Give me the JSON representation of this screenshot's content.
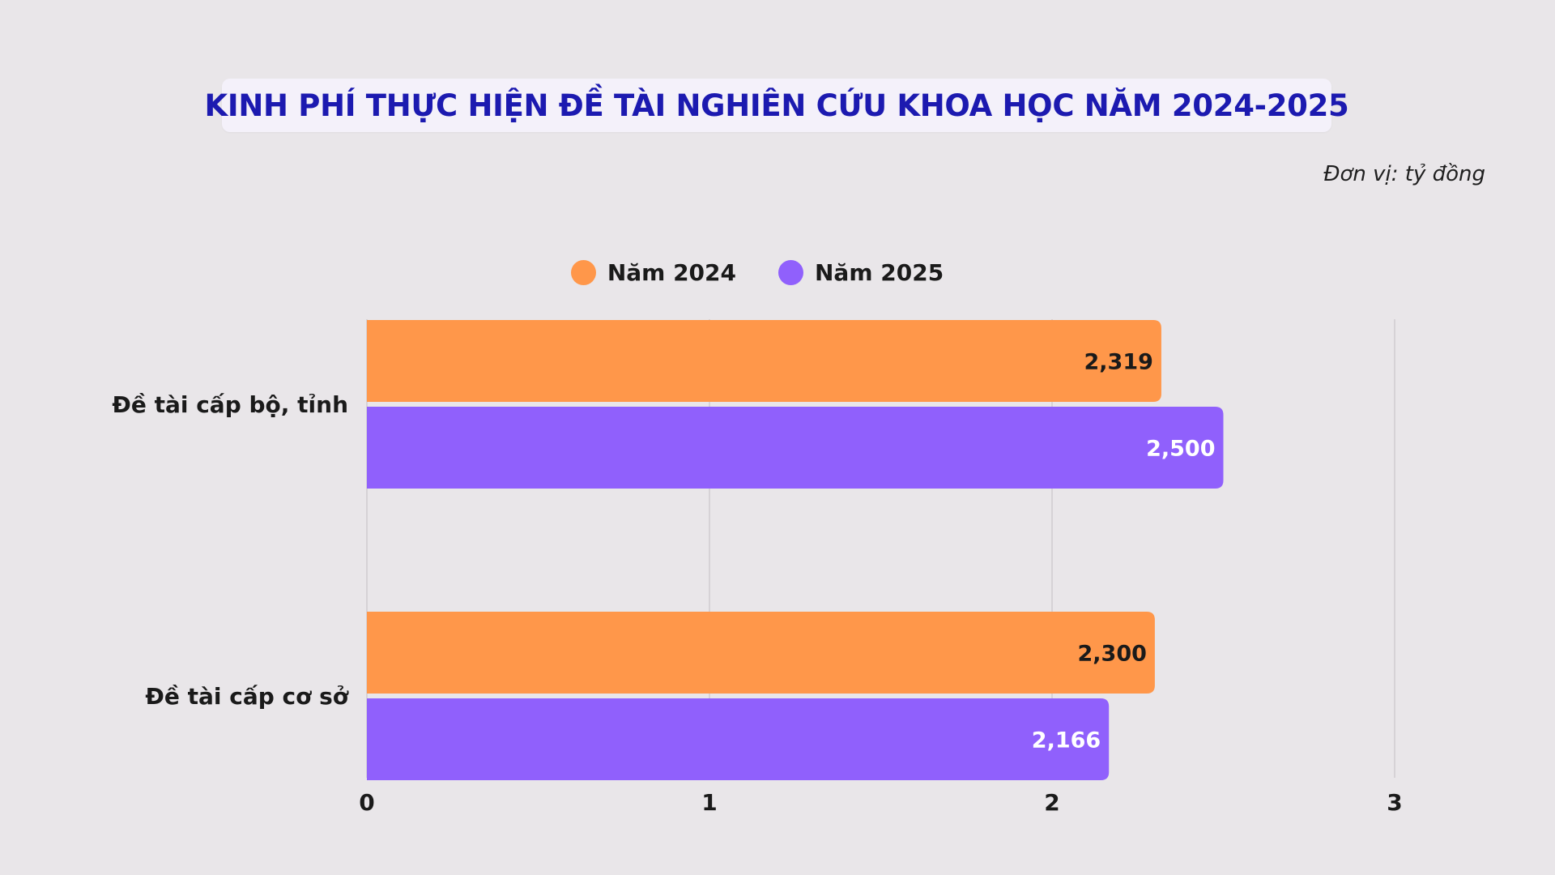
{
  "title": "KINH PHÍ THỰC HIỆN ĐỀ TÀI NGHIÊN CỨU KHOA HỌC NĂM 2024-2025",
  "unit_note": "Đơn vị: tỷ đồng",
  "chart_data": {
    "type": "bar",
    "orientation": "horizontal",
    "title": "KINH PHÍ THỰC HIỆN ĐỀ TÀI NGHIÊN CỨU KHOA HỌC NĂM 2024-2025",
    "categories": [
      "Đề tài cấp bộ, tỉnh",
      "Đề tài cấp cơ sở"
    ],
    "series": [
      {
        "name": "Năm 2024",
        "color": "#ff974a",
        "values": [
          2.319,
          2.3
        ],
        "labels": [
          "2,319",
          "2,300"
        ],
        "label_color": "#1a1a1a"
      },
      {
        "name": "Năm 2025",
        "color": "#9060fc",
        "values": [
          2.5,
          2.166
        ],
        "labels": [
          "2,500",
          "2,166"
        ],
        "label_color": "#ffffff"
      }
    ],
    "xlim": [
      0,
      3
    ],
    "xticks": [
      0,
      1,
      2,
      3
    ],
    "xtick_labels": [
      "0",
      "1",
      "2",
      "3"
    ],
    "grid": true,
    "legend_position": "top-center"
  }
}
